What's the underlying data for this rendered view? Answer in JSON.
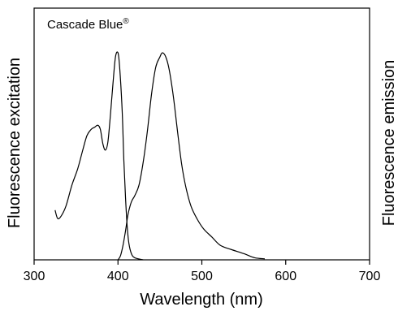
{
  "chart_data": {
    "type": "line",
    "title": "Cascade Blue",
    "title_mark": "®",
    "xlabel": "Wavelength (nm)",
    "ylabel_left": "Fluorescence excitation",
    "ylabel_right": "Fluorescence emission",
    "xlim": [
      300,
      700
    ],
    "ylim": [
      0,
      1
    ],
    "x_ticks": [
      300,
      400,
      500,
      600,
      700
    ],
    "grid": false,
    "line_color": "#000000",
    "series": [
      {
        "role": "excitation",
        "points": [
          [
            325,
            0.24
          ],
          [
            328,
            0.2
          ],
          [
            332,
            0.21
          ],
          [
            338,
            0.26
          ],
          [
            345,
            0.36
          ],
          [
            352,
            0.44
          ],
          [
            358,
            0.53
          ],
          [
            363,
            0.6
          ],
          [
            368,
            0.63
          ],
          [
            372,
            0.64
          ],
          [
            376,
            0.65
          ],
          [
            379,
            0.63
          ],
          [
            382,
            0.56
          ],
          [
            385,
            0.53
          ],
          [
            388,
            0.57
          ],
          [
            391,
            0.7
          ],
          [
            394,
            0.85
          ],
          [
            397,
            0.98
          ],
          [
            400,
            1.0
          ],
          [
            402,
            0.93
          ],
          [
            405,
            0.72
          ],
          [
            407,
            0.48
          ],
          [
            409,
            0.3
          ],
          [
            411,
            0.16
          ],
          [
            413,
            0.08
          ],
          [
            416,
            0.03
          ],
          [
            420,
            0.01
          ],
          [
            430,
            0.0
          ]
        ]
      },
      {
        "role": "emission",
        "points": [
          [
            400,
            0.0
          ],
          [
            403,
            0.02
          ],
          [
            406,
            0.07
          ],
          [
            409,
            0.14
          ],
          [
            412,
            0.22
          ],
          [
            416,
            0.28
          ],
          [
            420,
            0.31
          ],
          [
            425,
            0.36
          ],
          [
            430,
            0.47
          ],
          [
            435,
            0.62
          ],
          [
            440,
            0.8
          ],
          [
            445,
            0.93
          ],
          [
            450,
            0.98
          ],
          [
            453,
            1.0
          ],
          [
            457,
            0.98
          ],
          [
            461,
            0.92
          ],
          [
            466,
            0.79
          ],
          [
            471,
            0.62
          ],
          [
            476,
            0.46
          ],
          [
            481,
            0.35
          ],
          [
            487,
            0.26
          ],
          [
            494,
            0.2
          ],
          [
            502,
            0.15
          ],
          [
            512,
            0.11
          ],
          [
            522,
            0.07
          ],
          [
            535,
            0.05
          ],
          [
            550,
            0.03
          ],
          [
            563,
            0.01
          ],
          [
            575,
            0.005
          ]
        ]
      }
    ]
  }
}
